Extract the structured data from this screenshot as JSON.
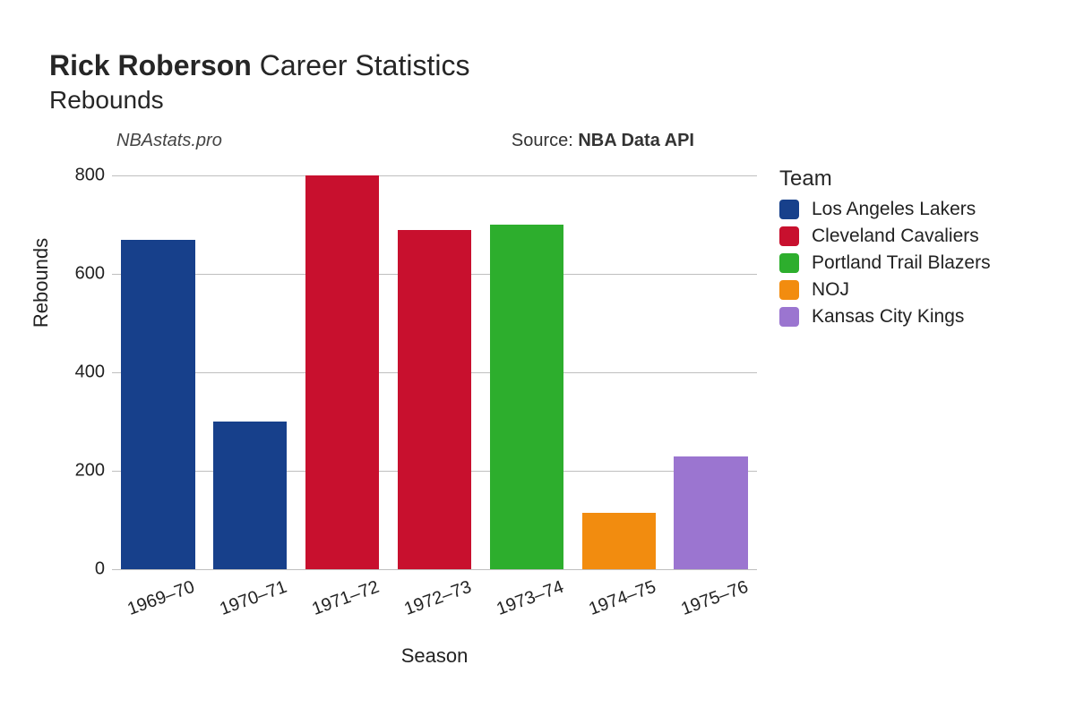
{
  "title": {
    "player_name": "Rick Roberson",
    "suffix": "Career Statistics",
    "stat": "Rebounds"
  },
  "annotations": {
    "site": "NBAstats.pro",
    "source_prefix": "Source: ",
    "source_name": "NBA Data API"
  },
  "chart": {
    "type": "bar",
    "xlabel": "Season",
    "ylabel": "Rebounds",
    "ylim": [
      0,
      800
    ],
    "ytick_step": 200,
    "yticks": [
      0,
      200,
      400,
      600,
      800
    ],
    "background_color": "#ffffff",
    "grid_color": "#bfbfbf",
    "tick_fontsize": 20,
    "label_fontsize": 22,
    "bar_width": 0.8,
    "categories": [
      "1969–70",
      "1970–71",
      "1971–72",
      "1972–73",
      "1973–74",
      "1974–75",
      "1975–76"
    ],
    "values": [
      670,
      300,
      800,
      690,
      700,
      115,
      230
    ],
    "bar_colors": [
      "#17408b",
      "#17408b",
      "#c8102e",
      "#c8102e",
      "#2dae2d",
      "#f28c0f",
      "#9b75d0"
    ]
  },
  "legend": {
    "title": "Team",
    "items": [
      {
        "label": "Los Angeles Lakers",
        "color": "#17408b"
      },
      {
        "label": "Cleveland Cavaliers",
        "color": "#c8102e"
      },
      {
        "label": "Portland Trail Blazers",
        "color": "#2dae2d"
      },
      {
        "label": "NOJ",
        "color": "#f28c0f"
      },
      {
        "label": "Kansas City Kings",
        "color": "#9b75d0"
      }
    ]
  }
}
